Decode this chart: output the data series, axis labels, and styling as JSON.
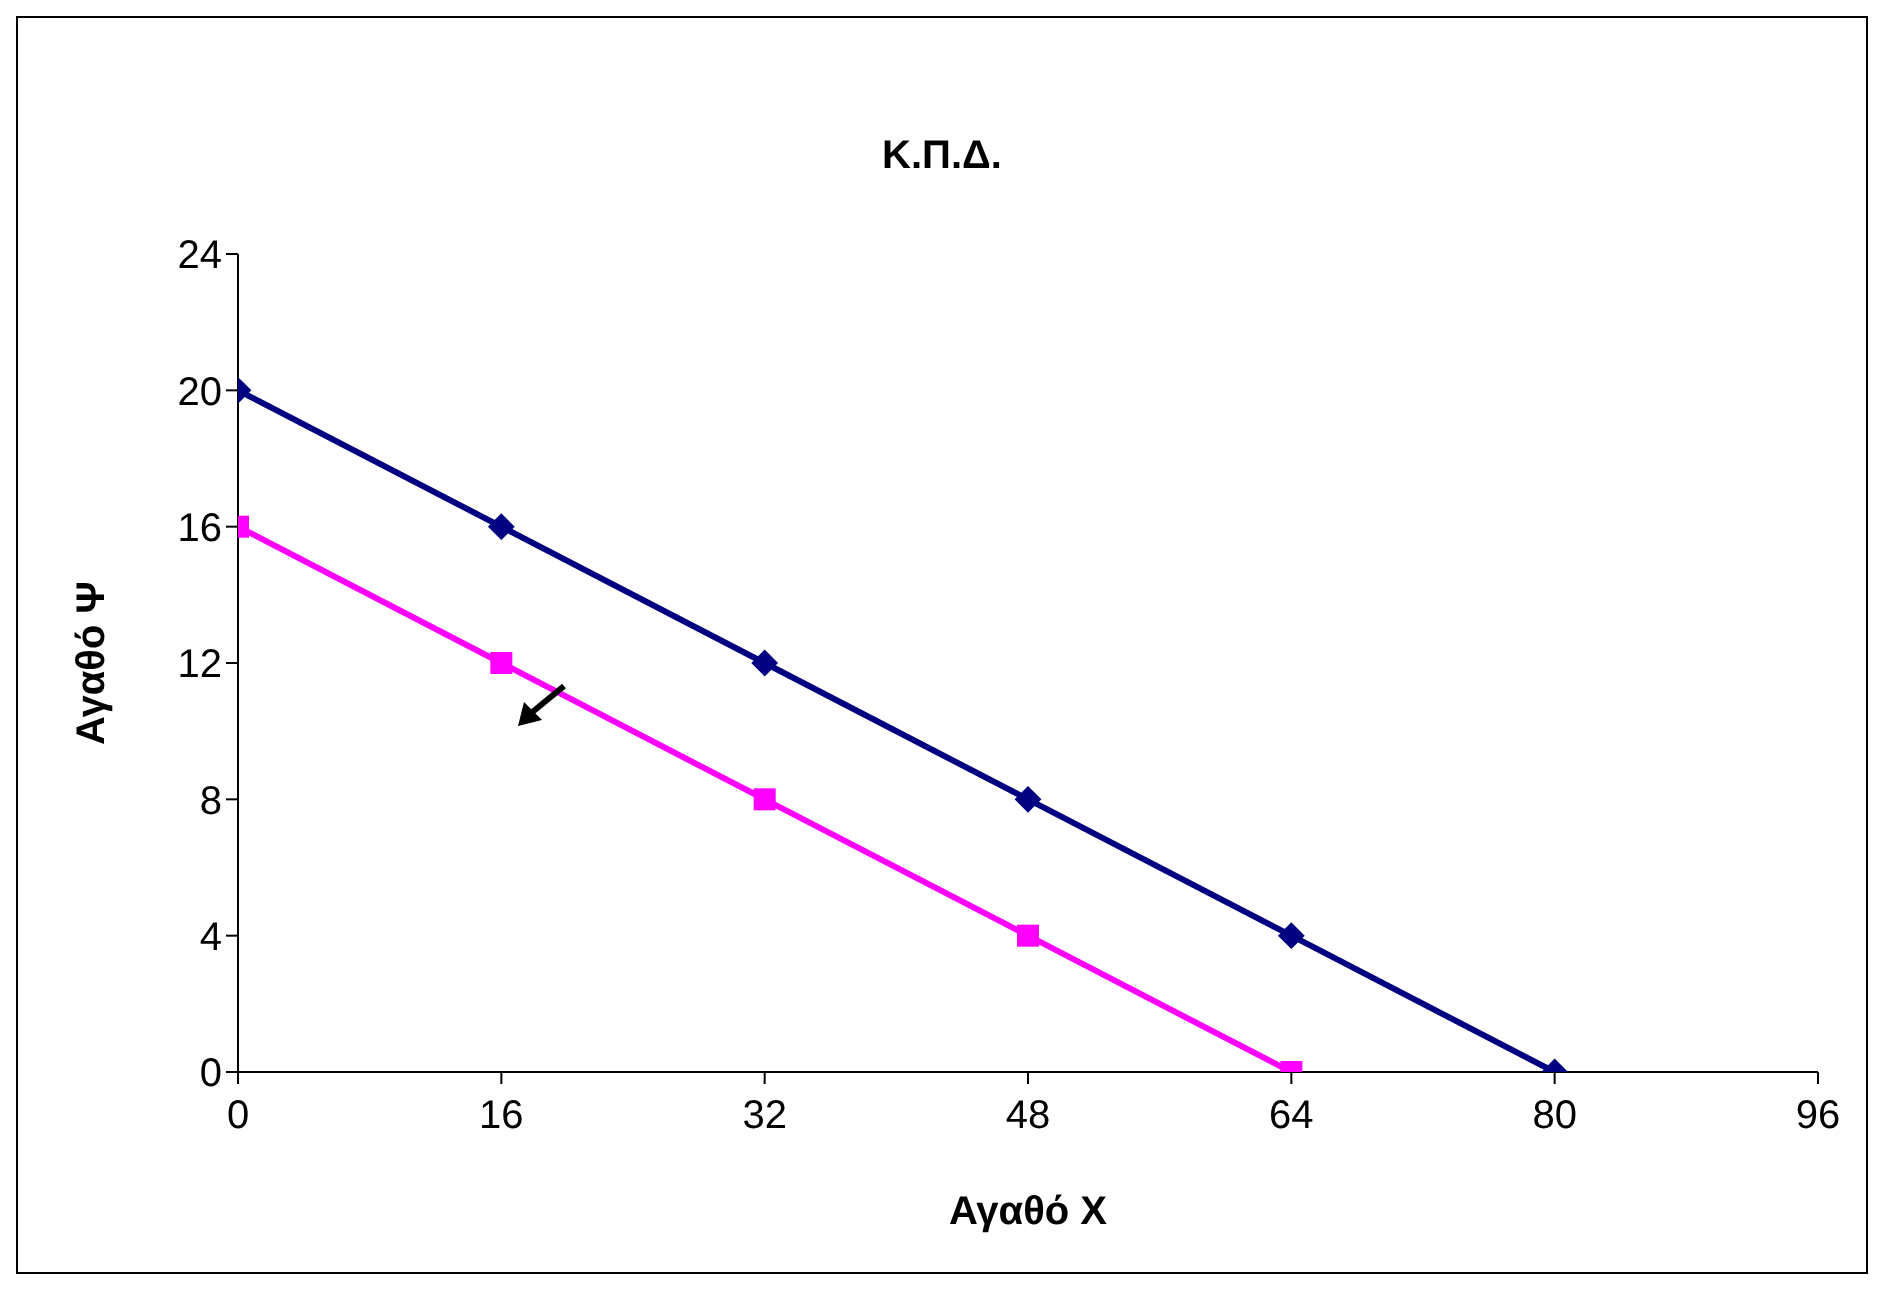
{
  "chart_data": {
    "type": "line",
    "title": "Κ.Π.Δ.",
    "xlabel": "Αγαθό Χ",
    "ylabel": "Αγαθό Ψ",
    "xlim": [
      0,
      96
    ],
    "xticks": [
      0,
      16,
      32,
      48,
      64,
      80,
      96
    ],
    "ylim": [
      0,
      24
    ],
    "yticks": [
      0,
      4,
      8,
      12,
      16,
      20,
      24
    ],
    "grid": false,
    "legend": false,
    "series": [
      {
        "color": "#000080",
        "marker": "diamond",
        "x": [
          0,
          16,
          32,
          48,
          64,
          80
        ],
        "values": [
          20,
          16,
          12,
          8,
          4,
          0
        ]
      },
      {
        "color": "#ff00ff",
        "marker": "square",
        "x": [
          0,
          16,
          32,
          48,
          64
        ],
        "values": [
          16,
          12,
          8,
          4,
          0
        ]
      }
    ]
  }
}
